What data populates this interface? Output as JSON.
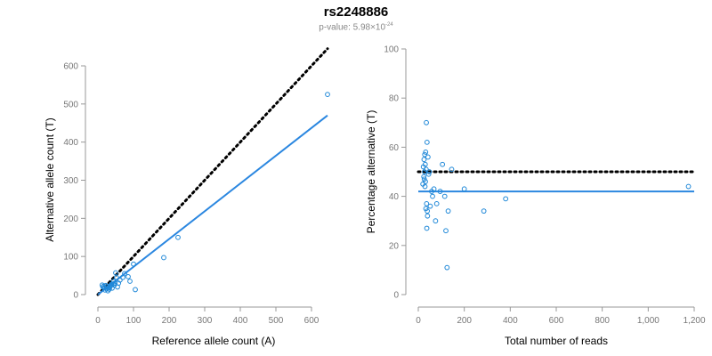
{
  "title": "rs2248886",
  "subtitle": {
    "prefix": "p-value: 5.98×10",
    "exponent": "-24"
  },
  "colors": {
    "points": "#1f88d8",
    "fit_line": "#2b87e0",
    "reference_line": "#000000",
    "axis": "#999999",
    "tick_text": "#777777"
  },
  "chart_data": [
    {
      "type": "scatter",
      "xlabel": "Reference allele count (A)",
      "ylabel": "Alternative allele count (T)",
      "xlim": [
        0,
        650
      ],
      "ylim": [
        0,
        600
      ],
      "xticks": [
        0,
        100,
        200,
        300,
        400,
        500,
        600
      ],
      "yticks": [
        0,
        100,
        200,
        300,
        400,
        500,
        600
      ],
      "xtick_labels": [
        "0",
        "100",
        "200",
        "300",
        "400",
        "500",
        "600"
      ],
      "ytick_labels": [
        "0",
        "100",
        "200",
        "300",
        "400",
        "500",
        "600"
      ],
      "grid": false,
      "reference_line": {
        "style": "dotted",
        "x": [
          0,
          645
        ],
        "y": [
          0,
          645
        ]
      },
      "fit_line": {
        "style": "solid",
        "x": [
          0,
          645
        ],
        "y": [
          0,
          470
        ]
      },
      "points": [
        [
          12,
          25
        ],
        [
          14,
          20
        ],
        [
          16,
          22
        ],
        [
          18,
          18
        ],
        [
          20,
          12
        ],
        [
          22,
          24
        ],
        [
          25,
          15
        ],
        [
          27,
          21
        ],
        [
          28,
          10
        ],
        [
          30,
          18
        ],
        [
          32,
          14
        ],
        [
          34,
          20
        ],
        [
          36,
          24
        ],
        [
          38,
          27
        ],
        [
          40,
          17
        ],
        [
          42,
          28
        ],
        [
          44,
          35
        ],
        [
          46,
          25
        ],
        [
          48,
          30
        ],
        [
          50,
          57
        ],
        [
          52,
          45
        ],
        [
          55,
          20
        ],
        [
          58,
          30
        ],
        [
          62,
          38
        ],
        [
          70,
          45
        ],
        [
          75,
          55
        ],
        [
          85,
          47
        ],
        [
          90,
          35
        ],
        [
          100,
          80
        ],
        [
          105,
          13
        ],
        [
          185,
          97
        ],
        [
          225,
          150
        ],
        [
          645,
          525
        ]
      ]
    },
    {
      "type": "scatter",
      "xlabel": "Total number of reads",
      "ylabel": "Percentage alternative (T)",
      "xlim": [
        0,
        1200
      ],
      "ylim": [
        0,
        100
      ],
      "xticks": [
        0,
        200,
        400,
        600,
        800,
        1000,
        1200
      ],
      "yticks": [
        0,
        20,
        40,
        60,
        80,
        100
      ],
      "xtick_labels": [
        "0",
        "200",
        "400",
        "600",
        "800",
        "1,000",
        "1,200"
      ],
      "ytick_labels": [
        "0",
        "20",
        "40",
        "60",
        "80",
        "100"
      ],
      "grid": false,
      "reference_line": {
        "style": "dotted",
        "y": 50
      },
      "fit_line": {
        "style": "solid",
        "y": 42
      },
      "points": [
        [
          20,
          45
        ],
        [
          22,
          52
        ],
        [
          24,
          48
        ],
        [
          25,
          55
        ],
        [
          26,
          47
        ],
        [
          27,
          50
        ],
        [
          28,
          57
        ],
        [
          29,
          44
        ],
        [
          30,
          53
        ],
        [
          31,
          46
        ],
        [
          32,
          58
        ],
        [
          33,
          35
        ],
        [
          34,
          51
        ],
        [
          35,
          70
        ],
        [
          36,
          37
        ],
        [
          37,
          27
        ],
        [
          38,
          62
        ],
        [
          39,
          34
        ],
        [
          40,
          32
        ],
        [
          42,
          56
        ],
        [
          45,
          49
        ],
        [
          48,
          50
        ],
        [
          52,
          36
        ],
        [
          58,
          42
        ],
        [
          62,
          40
        ],
        [
          68,
          43
        ],
        [
          75,
          30
        ],
        [
          80,
          37
        ],
        [
          95,
          42
        ],
        [
          105,
          53
        ],
        [
          115,
          40
        ],
        [
          120,
          26
        ],
        [
          125,
          11
        ],
        [
          130,
          34
        ],
        [
          145,
          51
        ],
        [
          200,
          43
        ],
        [
          285,
          34
        ],
        [
          380,
          39
        ],
        [
          1175,
          44
        ]
      ]
    }
  ]
}
